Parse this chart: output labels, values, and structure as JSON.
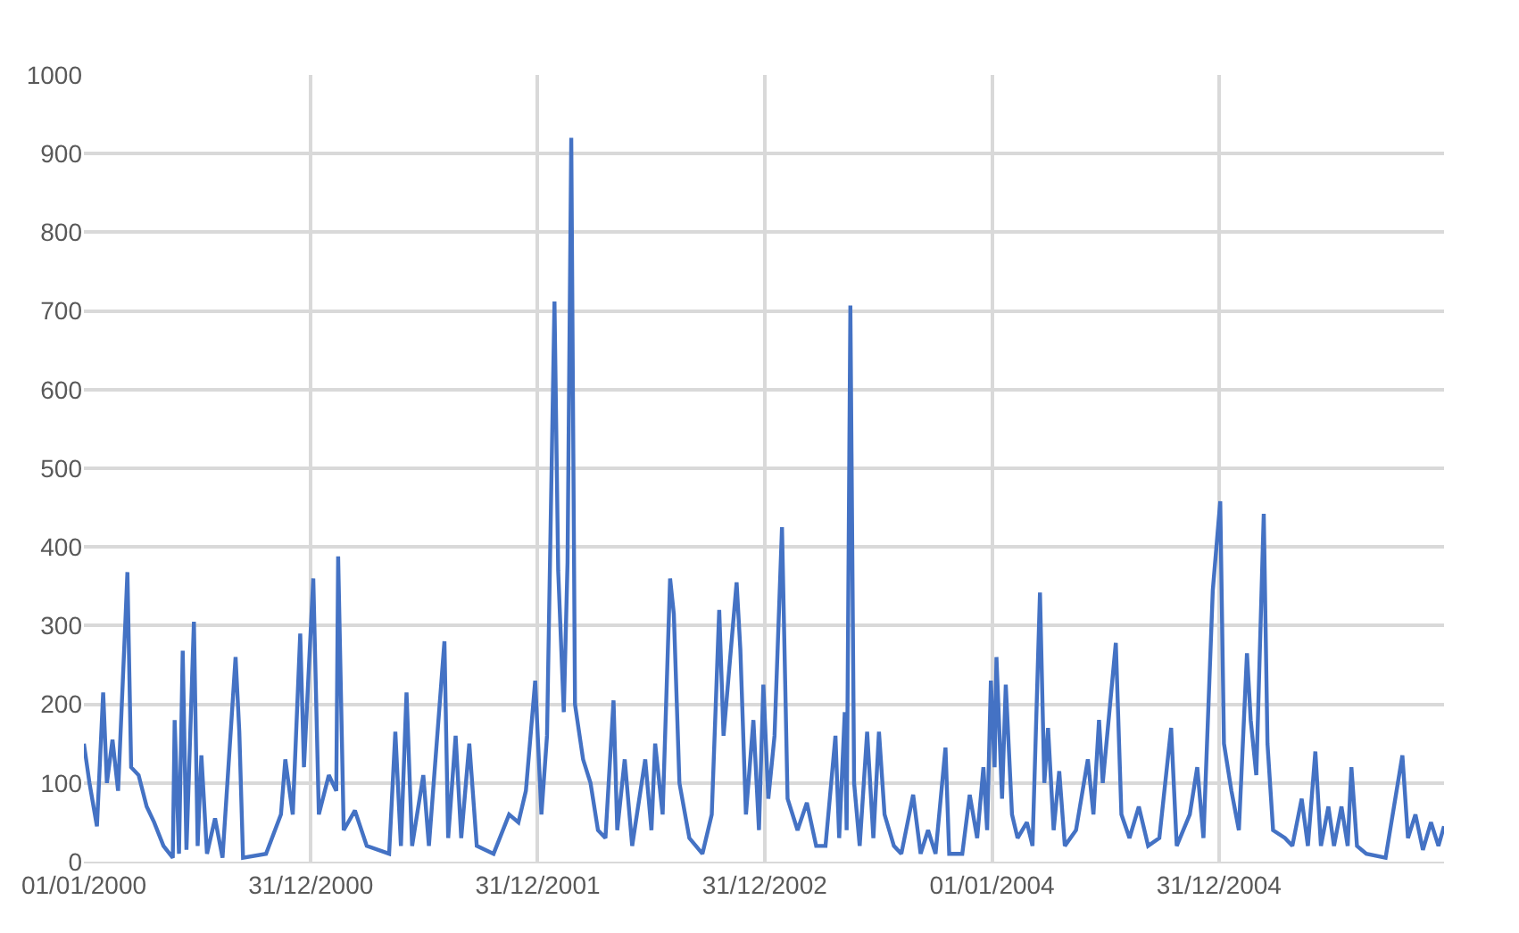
{
  "chart_data": {
    "type": "line",
    "x": [
      "2000-01-01",
      "2000-01-10",
      "2000-01-22",
      "2000-02-01",
      "2000-02-07",
      "2000-02-16",
      "2000-02-25",
      "2000-03-08",
      "2000-03-11",
      "2000-03-17",
      "2000-03-29",
      "2000-04-11",
      "2000-04-23",
      "2000-05-08",
      "2000-05-23",
      "2000-05-26",
      "2000-06-02",
      "2000-06-08",
      "2000-06-14",
      "2000-06-26",
      "2000-07-02",
      "2000-07-08",
      "2000-07-17",
      "2000-07-30",
      "2000-08-11",
      "2000-09-01",
      "2000-09-07",
      "2000-09-13",
      "2000-10-20",
      "2000-11-13",
      "2000-11-20",
      "2000-12-02",
      "2000-12-14",
      "2000-12-20",
      "2001-01-04",
      "2001-01-13",
      "2001-01-29",
      "2001-02-10",
      "2001-02-13",
      "2001-02-22",
      "2001-03-12",
      "2001-03-31",
      "2001-05-06",
      "2001-05-16",
      "2001-05-25",
      "2001-06-03",
      "2001-06-12",
      "2001-06-30",
      "2001-07-09",
      "2001-08-03",
      "2001-08-09",
      "2001-08-21",
      "2001-08-30",
      "2001-09-12",
      "2001-09-24",
      "2001-10-21",
      "2001-11-15",
      "2001-11-30",
      "2001-12-12",
      "2001-12-27",
      "2002-01-06",
      "2002-01-15",
      "2002-01-27",
      "2002-02-02",
      "2002-02-11",
      "2002-02-17",
      "2002-02-23",
      "2002-03-01",
      "2002-03-14",
      "2002-03-26",
      "2002-04-07",
      "2002-04-19",
      "2002-05-02",
      "2002-05-08",
      "2002-05-20",
      "2002-06-01",
      "2002-06-22",
      "2002-07-02",
      "2002-07-08",
      "2002-07-20",
      "2002-08-01",
      "2002-08-07",
      "2002-08-16",
      "2002-09-01",
      "2002-09-22",
      "2002-10-07",
      "2002-10-19",
      "2002-10-26",
      "2002-11-16",
      "2002-11-22",
      "2002-12-01",
      "2002-12-13",
      "2002-12-22",
      "2002-12-29",
      "2003-01-06",
      "2003-01-16",
      "2003-01-28",
      "2003-02-06",
      "2003-02-22",
      "2003-03-09",
      "2003-03-24",
      "2003-04-08",
      "2003-04-24",
      "2003-04-30",
      "2003-05-09",
      "2003-05-12",
      "2003-05-18",
      "2003-05-24",
      "2003-06-02",
      "2003-06-14",
      "2003-06-24",
      "2003-07-03",
      "2003-07-12",
      "2003-07-27",
      "2003-08-08",
      "2003-08-27",
      "2003-09-08",
      "2003-09-20",
      "2003-10-02",
      "2003-10-18",
      "2003-10-24",
      "2003-11-14",
      "2003-11-26",
      "2003-12-08",
      "2003-12-18",
      "2003-12-24",
      "2003-12-30",
      "2004-01-05",
      "2004-01-08",
      "2004-01-17",
      "2004-01-23",
      "2004-02-02",
      "2004-02-11",
      "2004-02-26",
      "2004-03-06",
      "2004-03-18",
      "2004-03-25",
      "2004-03-31",
      "2004-04-09",
      "2004-04-18",
      "2004-04-27",
      "2004-05-15",
      "2004-06-03",
      "2004-06-12",
      "2004-06-21",
      "2004-06-27",
      "2004-07-18",
      "2004-07-27",
      "2004-08-09",
      "2004-08-24",
      "2004-09-08",
      "2004-09-26",
      "2004-10-15",
      "2004-10-24",
      "2004-11-14",
      "2004-11-26",
      "2004-12-06",
      "2004-12-21",
      "2005-01-02",
      "2005-01-08",
      "2005-01-20",
      "2005-02-01",
      "2005-02-14",
      "2005-02-20",
      "2005-03-01",
      "2005-03-13",
      "2005-03-19",
      "2005-03-28",
      "2005-04-16",
      "2005-04-28",
      "2005-05-13",
      "2005-05-23",
      "2005-06-04",
      "2005-06-13",
      "2005-06-25",
      "2005-07-04",
      "2005-07-16",
      "2005-07-26",
      "2005-08-01",
      "2005-08-10",
      "2005-08-25",
      "2005-09-25",
      "2005-10-22",
      "2005-10-31",
      "2005-11-12",
      "2005-11-24",
      "2005-12-07",
      "2005-12-19",
      "2005-12-28"
    ],
    "series": [
      {
        "color": "#4472c4",
        "values": [
          150,
          100,
          45,
          215,
          100,
          155,
          90,
          310,
          368,
          120,
          110,
          70,
          50,
          20,
          5,
          180,
          10,
          268,
          15,
          305,
          20,
          135,
          10,
          55,
          5,
          260,
          165,
          5,
          10,
          60,
          130,
          60,
          290,
          120,
          360,
          60,
          110,
          90,
          388,
          40,
          65,
          20,
          10,
          165,
          20,
          215,
          20,
          110,
          20,
          280,
          30,
          160,
          30,
          150,
          20,
          10,
          60,
          50,
          90,
          230,
          60,
          160,
          712,
          370,
          190,
          380,
          920,
          200,
          130,
          100,
          40,
          30,
          205,
          40,
          130,
          20,
          130,
          40,
          150,
          60,
          360,
          315,
          100,
          30,
          10,
          60,
          320,
          160,
          355,
          270,
          60,
          180,
          40,
          225,
          80,
          160,
          425,
          80,
          40,
          75,
          20,
          20,
          160,
          30,
          190,
          40,
          707,
          100,
          20,
          165,
          30,
          165,
          60,
          20,
          10,
          85,
          10,
          40,
          10,
          145,
          10,
          10,
          85,
          30,
          120,
          40,
          230,
          120,
          260,
          80,
          225,
          60,
          30,
          50,
          20,
          342,
          100,
          170,
          40,
          115,
          20,
          40,
          130,
          60,
          180,
          100,
          278,
          60,
          30,
          70,
          20,
          30,
          170,
          20,
          60,
          120,
          30,
          345,
          458,
          150,
          90,
          40,
          265,
          180,
          110,
          442,
          150,
          40,
          30,
          20,
          80,
          20,
          140,
          20,
          70,
          20,
          70,
          20,
          120,
          20,
          10,
          5,
          135,
          30,
          60,
          15,
          50,
          20,
          45
        ]
      }
    ],
    "xlim": [
      "2000-01-01",
      "2005-12-28"
    ],
    "xticks": [
      {
        "value": "2000-01-01",
        "label": "01/01/2000"
      },
      {
        "value": "2000-12-31",
        "label": "31/12/2000"
      },
      {
        "value": "2001-12-31",
        "label": "31/12/2001"
      },
      {
        "value": "2002-12-31",
        "label": "31/12/2002"
      },
      {
        "value": "2004-01-01",
        "label": "01/01/2004"
      },
      {
        "value": "2004-12-31",
        "label": "31/12/2004"
      }
    ],
    "ylim": [
      0,
      1000
    ],
    "yticks": [
      0,
      100,
      200,
      300,
      400,
      500,
      600,
      700,
      800,
      900,
      1000
    ],
    "grid": true
  }
}
